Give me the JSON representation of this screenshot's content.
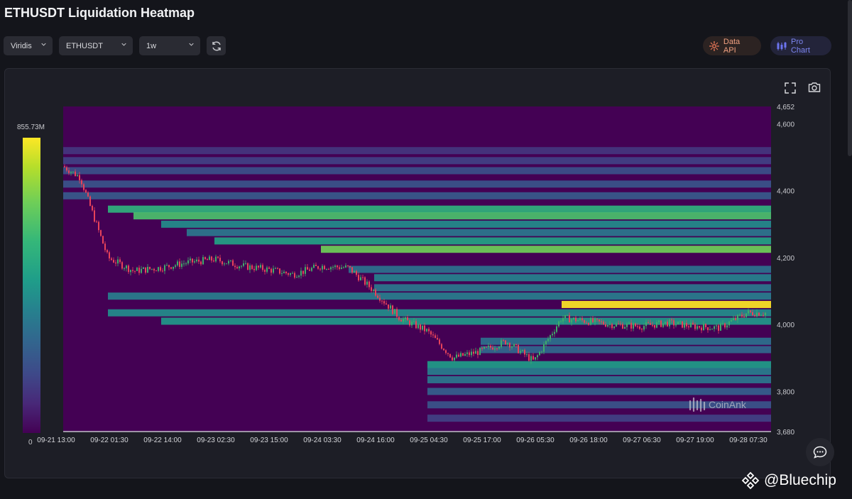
{
  "page": {
    "title": "ETHUSDT Liquidation Heatmap"
  },
  "controls": {
    "palette": "Viridis",
    "symbol": "ETHUSDT",
    "range": "1w",
    "data_api": "Data API",
    "pro_chart": "Pro Chart"
  },
  "scale": {
    "max_label": "855.73M",
    "min_label": "0"
  },
  "watermark": "CoinAnk",
  "footer": {
    "credit": "@Bluechip"
  },
  "colors": {
    "background": "#14151b",
    "panel": "#1d1e26",
    "up": "#3fae6a",
    "down": "#e8435a",
    "heat_low": "#440154",
    "heat_high": "#fde725"
  },
  "chart_data": {
    "type": "heatmap",
    "title": "ETHUSDT Liquidation Heatmap",
    "colorscale": "Viridis",
    "color_range": [
      0,
      855.73
    ],
    "color_unit": "M",
    "y_ticks": [
      4652,
      4600,
      4400,
      4200,
      4000,
      3800,
      3680
    ],
    "ylim": [
      3680,
      4652
    ],
    "x_ticks": [
      "09-21 13:00",
      "09-22 01:30",
      "09-22 14:00",
      "09-23 02:30",
      "09-23 15:00",
      "09-24 03:30",
      "09-24 16:00",
      "09-25 04:30",
      "09-25 17:00",
      "09-26 05:30",
      "09-26 18:00",
      "09-27 06:30",
      "09-27 19:00",
      "09-28 07:30"
    ],
    "price_path": [
      {
        "t": "09-21 13:00",
        "price": 4490
      },
      {
        "t": "09-21 19:00",
        "price": 4440
      },
      {
        "t": "09-22 01:30",
        "price": 4200
      },
      {
        "t": "09-22 07:30",
        "price": 4160
      },
      {
        "t": "09-22 14:00",
        "price": 4170
      },
      {
        "t": "09-22 20:00",
        "price": 4185
      },
      {
        "t": "09-23 02:30",
        "price": 4195
      },
      {
        "t": "09-23 09:00",
        "price": 4175
      },
      {
        "t": "09-23 15:00",
        "price": 4165
      },
      {
        "t": "09-23 21:00",
        "price": 4150
      },
      {
        "t": "09-24 03:30",
        "price": 4175
      },
      {
        "t": "09-24 10:00",
        "price": 4170
      },
      {
        "t": "09-24 16:00",
        "price": 4100
      },
      {
        "t": "09-24 22:00",
        "price": 4020
      },
      {
        "t": "09-25 04:30",
        "price": 3980
      },
      {
        "t": "09-25 10:30",
        "price": 3900
      },
      {
        "t": "09-25 17:00",
        "price": 3920
      },
      {
        "t": "09-25 23:00",
        "price": 3950
      },
      {
        "t": "09-26 05:30",
        "price": 3890
      },
      {
        "t": "09-26 12:00",
        "price": 4020
      },
      {
        "t": "09-26 18:00",
        "price": 4010
      },
      {
        "t": "09-27 00:00",
        "price": 4000
      },
      {
        "t": "09-27 06:30",
        "price": 3995
      },
      {
        "t": "09-27 13:00",
        "price": 4005
      },
      {
        "t": "09-27 19:00",
        "price": 3995
      },
      {
        "t": "09-28 01:00",
        "price": 3990
      },
      {
        "t": "09-28 07:30",
        "price": 4035
      }
    ],
    "liquidation_bands": [
      {
        "price": 4520,
        "intensity": 0.18,
        "from": "09-21 13:00"
      },
      {
        "price": 4490,
        "intensity": 0.22,
        "from": "09-21 13:00"
      },
      {
        "price": 4460,
        "intensity": 0.28,
        "from": "09-21 13:00"
      },
      {
        "price": 4420,
        "intensity": 0.3,
        "from": "09-21 13:00"
      },
      {
        "price": 4385,
        "intensity": 0.32,
        "from": "09-21 13:00"
      },
      {
        "price": 4345,
        "intensity": 0.72,
        "from": "09-22 01:30"
      },
      {
        "price": 4325,
        "intensity": 0.8,
        "from": "09-22 07:30"
      },
      {
        "price": 4300,
        "intensity": 0.55,
        "from": "09-22 14:00"
      },
      {
        "price": 4275,
        "intensity": 0.45,
        "from": "09-22 20:00"
      },
      {
        "price": 4250,
        "intensity": 0.65,
        "from": "09-23 02:30"
      },
      {
        "price": 4225,
        "intensity": 0.88,
        "from": "09-24 03:30"
      },
      {
        "price": 4165,
        "intensity": 0.42,
        "from": "09-24 10:00"
      },
      {
        "price": 4140,
        "intensity": 0.5,
        "from": "09-24 16:00"
      },
      {
        "price": 4110,
        "intensity": 0.45,
        "from": "09-24 16:00"
      },
      {
        "price": 4085,
        "intensity": 0.48,
        "from": "09-22 01:30"
      },
      {
        "price": 4060,
        "intensity": 1.0,
        "from": "09-26 12:00"
      },
      {
        "price": 4035,
        "intensity": 0.55,
        "from": "09-22 01:30"
      },
      {
        "price": 4010,
        "intensity": 0.6,
        "from": "09-22 14:00"
      },
      {
        "price": 3950,
        "intensity": 0.42,
        "from": "09-25 17:00"
      },
      {
        "price": 3925,
        "intensity": 0.38,
        "from": "09-25 17:00"
      },
      {
        "price": 3880,
        "intensity": 0.62,
        "from": "09-25 04:30"
      },
      {
        "price": 3860,
        "intensity": 0.48,
        "from": "09-25 04:30"
      },
      {
        "price": 3835,
        "intensity": 0.45,
        "from": "09-25 04:30"
      },
      {
        "price": 3800,
        "intensity": 0.35,
        "from": "09-25 04:30"
      },
      {
        "price": 3760,
        "intensity": 0.3,
        "from": "09-25 04:30"
      },
      {
        "price": 3720,
        "intensity": 0.22,
        "from": "09-25 04:30"
      }
    ]
  }
}
